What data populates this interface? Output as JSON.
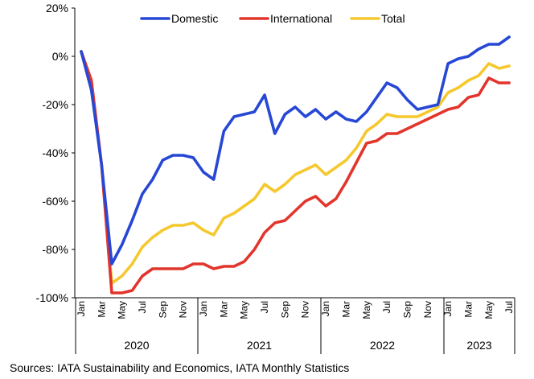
{
  "chart_data": {
    "type": "line",
    "title": "",
    "xlabel": "",
    "ylabel": "",
    "ylim": [
      -100,
      20
    ],
    "y_ticks": [
      -100,
      -80,
      -60,
      -40,
      -20,
      0,
      20
    ],
    "y_tick_labels": [
      "-100%",
      "-80%",
      "-60%",
      "-40%",
      "-20%",
      "0%",
      "20%"
    ],
    "x_tick_labels": [
      "Jan",
      "Mar",
      "May",
      "Jul",
      "Sep",
      "Nov",
      "Jan",
      "Mar",
      "May",
      "Jul",
      "Sep",
      "Nov",
      "Jan",
      "Mar",
      "May",
      "Jul",
      "Sep",
      "Nov",
      "Jan",
      "Mar",
      "May",
      "Jul"
    ],
    "x_tick_months": [
      0,
      2,
      4,
      6,
      8,
      10,
      12,
      14,
      16,
      18,
      20,
      22,
      24,
      26,
      28,
      30,
      32,
      34,
      36,
      38,
      40,
      42
    ],
    "years": [
      "2020",
      "2021",
      "2022",
      "2023"
    ],
    "legend_position": "top-right",
    "months": [
      "2020-01",
      "2020-02",
      "2020-03",
      "2020-04",
      "2020-05",
      "2020-06",
      "2020-07",
      "2020-08",
      "2020-09",
      "2020-10",
      "2020-11",
      "2020-12",
      "2021-01",
      "2021-02",
      "2021-03",
      "2021-04",
      "2021-05",
      "2021-06",
      "2021-07",
      "2021-08",
      "2021-09",
      "2021-10",
      "2021-11",
      "2021-12",
      "2022-01",
      "2022-02",
      "2022-03",
      "2022-04",
      "2022-05",
      "2022-06",
      "2022-07",
      "2022-08",
      "2022-09",
      "2022-10",
      "2022-11",
      "2022-12",
      "2023-01",
      "2023-02",
      "2023-03",
      "2023-04",
      "2023-05",
      "2023-06",
      "2023-07"
    ],
    "series": [
      {
        "name": "Domestic",
        "color": "#2747d5",
        "values": [
          2,
          -14,
          -45,
          -86,
          -78,
          -68,
          -57,
          -51,
          -43,
          -41,
          -41,
          -42,
          -48,
          -51,
          -31,
          -25,
          -24,
          -23,
          -16,
          -32,
          -24,
          -21,
          -25,
          -22,
          -26,
          -23,
          -26,
          -27,
          -23,
          -17,
          -11,
          -13,
          -18,
          -22,
          -21,
          -20,
          -3,
          -1,
          0,
          3,
          5,
          5,
          8
        ]
      },
      {
        "name": "International",
        "color": "#e2352c",
        "values": [
          2,
          -10,
          -45,
          -98,
          -98,
          -97,
          -91,
          -88,
          -88,
          -88,
          -88,
          -86,
          -86,
          -88,
          -87,
          -87,
          -85,
          -80,
          -73,
          -69,
          -68,
          -64,
          -60,
          -58,
          -62,
          -59,
          -52,
          -44,
          -36,
          -35,
          -32,
          -32,
          -30,
          -28,
          -26,
          -24,
          -22,
          -21,
          -17,
          -16,
          -9,
          -11,
          -11
        ]
      },
      {
        "name": "Total",
        "color": "#f5c82e",
        "values": [
          2,
          -12,
          -45,
          -94,
          -91,
          -86,
          -79,
          -75,
          -72,
          -70,
          -70,
          -69,
          -72,
          -74,
          -67,
          -65,
          -62,
          -59,
          -53,
          -56,
          -53,
          -49,
          -47,
          -45,
          -49,
          -46,
          -43,
          -38,
          -31,
          -28,
          -24,
          -25,
          -25,
          -25,
          -23,
          -21,
          -15,
          -13,
          -10,
          -8,
          -3,
          -5,
          -4
        ]
      }
    ]
  },
  "footer": {
    "source": "Sources: IATA Sustainability and Economics, IATA Monthly Statistics"
  }
}
